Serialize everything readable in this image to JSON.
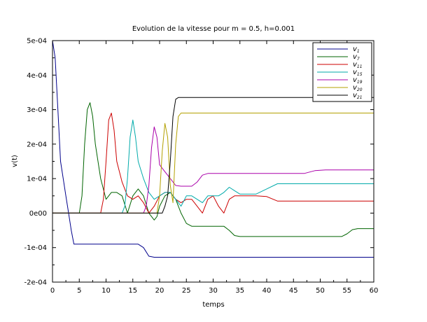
{
  "chart_data": {
    "type": "line",
    "title": "Evolution de la vitesse pour m = 0.5, h=0.001",
    "xlabel": "temps",
    "ylabel": "v(t)",
    "xlim": [
      0,
      60
    ],
    "ylim": [
      -0.0002,
      0.0005
    ],
    "xticks": [
      "0",
      "5",
      "10",
      "15",
      "20",
      "25",
      "30",
      "35",
      "40",
      "45",
      "50",
      "55",
      "60"
    ],
    "yticks": [
      "-2e-04",
      "-1e-04",
      "0e00",
      "1e-04",
      "2e-04",
      "3e-04",
      "4e-04",
      "5e-04"
    ],
    "grid": false,
    "legend_position": "top-right",
    "series": [
      {
        "name": "v_1",
        "color": "#00008b",
        "x": [
          0,
          0.5,
          1,
          1.5,
          2,
          2.5,
          3,
          3.5,
          4,
          4.5,
          5,
          10,
          15,
          16,
          17,
          18,
          19,
          20,
          60
        ],
        "y": [
          0.0005,
          0.00045,
          0.0003,
          0.00015,
          0.0001,
          5e-05,
          0.0,
          -5e-05,
          -9e-05,
          -9e-05,
          -9e-05,
          -9e-05,
          -9e-05,
          -9e-05,
          -0.0001,
          -0.000125,
          -0.000128,
          -0.000128,
          -0.000128
        ]
      },
      {
        "name": "v_7",
        "color": "#006400",
        "x": [
          0,
          5,
          5.5,
          6,
          6.5,
          7,
          7.5,
          8,
          9,
          10,
          11,
          12,
          13,
          14,
          15,
          16,
          17,
          18,
          19,
          19.5,
          20,
          21,
          22,
          23,
          24,
          25,
          26,
          28,
          32,
          33,
          34,
          35,
          37,
          50,
          54,
          55,
          56,
          57,
          60
        ],
        "y": [
          0,
          0,
          5e-05,
          0.0002,
          0.0003,
          0.00032,
          0.00028,
          0.0002,
          0.0001,
          4e-05,
          6e-05,
          6e-05,
          5e-05,
          0.0,
          5e-05,
          7e-05,
          5e-05,
          0.0,
          -2e-05,
          -1e-05,
          2e-05,
          5e-05,
          6e-05,
          4e-05,
          0.0,
          -3e-05,
          -3.8e-05,
          -3.8e-05,
          -3.8e-05,
          -5e-05,
          -6.5e-05,
          -6.8e-05,
          -6.8e-05,
          -6.8e-05,
          -6.8e-05,
          -6e-05,
          -4.8e-05,
          -4.5e-05,
          -4.5e-05
        ]
      },
      {
        "name": "v_11",
        "color": "#cc0000",
        "x": [
          0,
          9,
          9.5,
          10,
          10.5,
          11,
          11.5,
          12,
          13,
          14,
          15,
          16,
          17,
          18,
          19,
          20,
          21,
          22,
          23,
          24,
          25,
          26,
          27,
          28,
          29,
          30,
          31,
          32,
          33,
          34,
          35,
          38,
          40,
          42,
          44,
          60
        ],
        "y": [
          0,
          0,
          4e-05,
          0.00015,
          0.00027,
          0.00029,
          0.00024,
          0.00015,
          9e-05,
          5e-05,
          4e-05,
          5e-05,
          3e-05,
          0.0,
          2e-05,
          5e-05,
          6e-05,
          6e-05,
          4e-05,
          3e-05,
          4e-05,
          4e-05,
          2e-05,
          0.0,
          4e-05,
          5e-05,
          2e-05,
          0.0,
          4e-05,
          5e-05,
          5e-05,
          5e-05,
          4.8e-05,
          3.5e-05,
          3.5e-05,
          3.5e-05
        ]
      },
      {
        "name": "v_15",
        "color": "#00aaaa",
        "x": [
          0,
          13,
          13.5,
          14,
          14.5,
          15,
          15.5,
          16,
          17,
          18,
          19,
          20,
          21,
          22,
          23,
          24,
          25,
          26,
          27,
          28,
          29,
          30,
          31,
          32,
          33,
          34,
          35,
          36,
          38,
          40,
          42,
          45,
          50,
          60
        ],
        "y": [
          0,
          0,
          2e-05,
          0.0001,
          0.00022,
          0.00027,
          0.00022,
          0.00015,
          0.0001,
          6e-05,
          4e-05,
          5e-05,
          6e-05,
          6e-05,
          4e-05,
          2e-05,
          5e-05,
          5e-05,
          4e-05,
          3e-05,
          5e-05,
          5e-05,
          5e-05,
          6e-05,
          7.5e-05,
          6.5e-05,
          5.5e-05,
          5.5e-05,
          5.5e-05,
          7e-05,
          8.5e-05,
          8.5e-05,
          8.5e-05,
          8.5e-05
        ]
      },
      {
        "name": "v_19",
        "color": "#aa00aa",
        "x": [
          0,
          17,
          17.5,
          18,
          18.5,
          19,
          19.5,
          20,
          21,
          22,
          23,
          24,
          25,
          26,
          27,
          28,
          29,
          30,
          47,
          49,
          51,
          60
        ],
        "y": [
          0,
          0,
          2e-05,
          8e-05,
          0.00019,
          0.00025,
          0.00022,
          0.00014,
          0.00012,
          0.0001,
          8e-05,
          7.8e-05,
          7.8e-05,
          7.8e-05,
          9e-05,
          0.00011,
          0.000115,
          0.000115,
          0.000115,
          0.000123,
          0.000125,
          0.000125
        ]
      },
      {
        "name": "v_20",
        "color": "#b3a000",
        "x": [
          0,
          19.5,
          20,
          20.5,
          21,
          21.5,
          22,
          22.5,
          23,
          23.5,
          24,
          25,
          60
        ],
        "y": [
          0,
          0,
          5e-05,
          0.00018,
          0.00026,
          0.00022,
          8e-05,
          3e-05,
          0.0002,
          0.00028,
          0.00029,
          0.00029,
          0.00029
        ]
      },
      {
        "name": "v_21",
        "color": "#000000",
        "x": [
          0,
          20.5,
          21,
          21.5,
          22,
          22.5,
          23,
          23.5,
          24,
          60
        ],
        "y": [
          0,
          0,
          2e-05,
          5e-05,
          0.00015,
          0.00028,
          0.00033,
          0.000335,
          0.000335,
          0.000335
        ]
      }
    ]
  }
}
